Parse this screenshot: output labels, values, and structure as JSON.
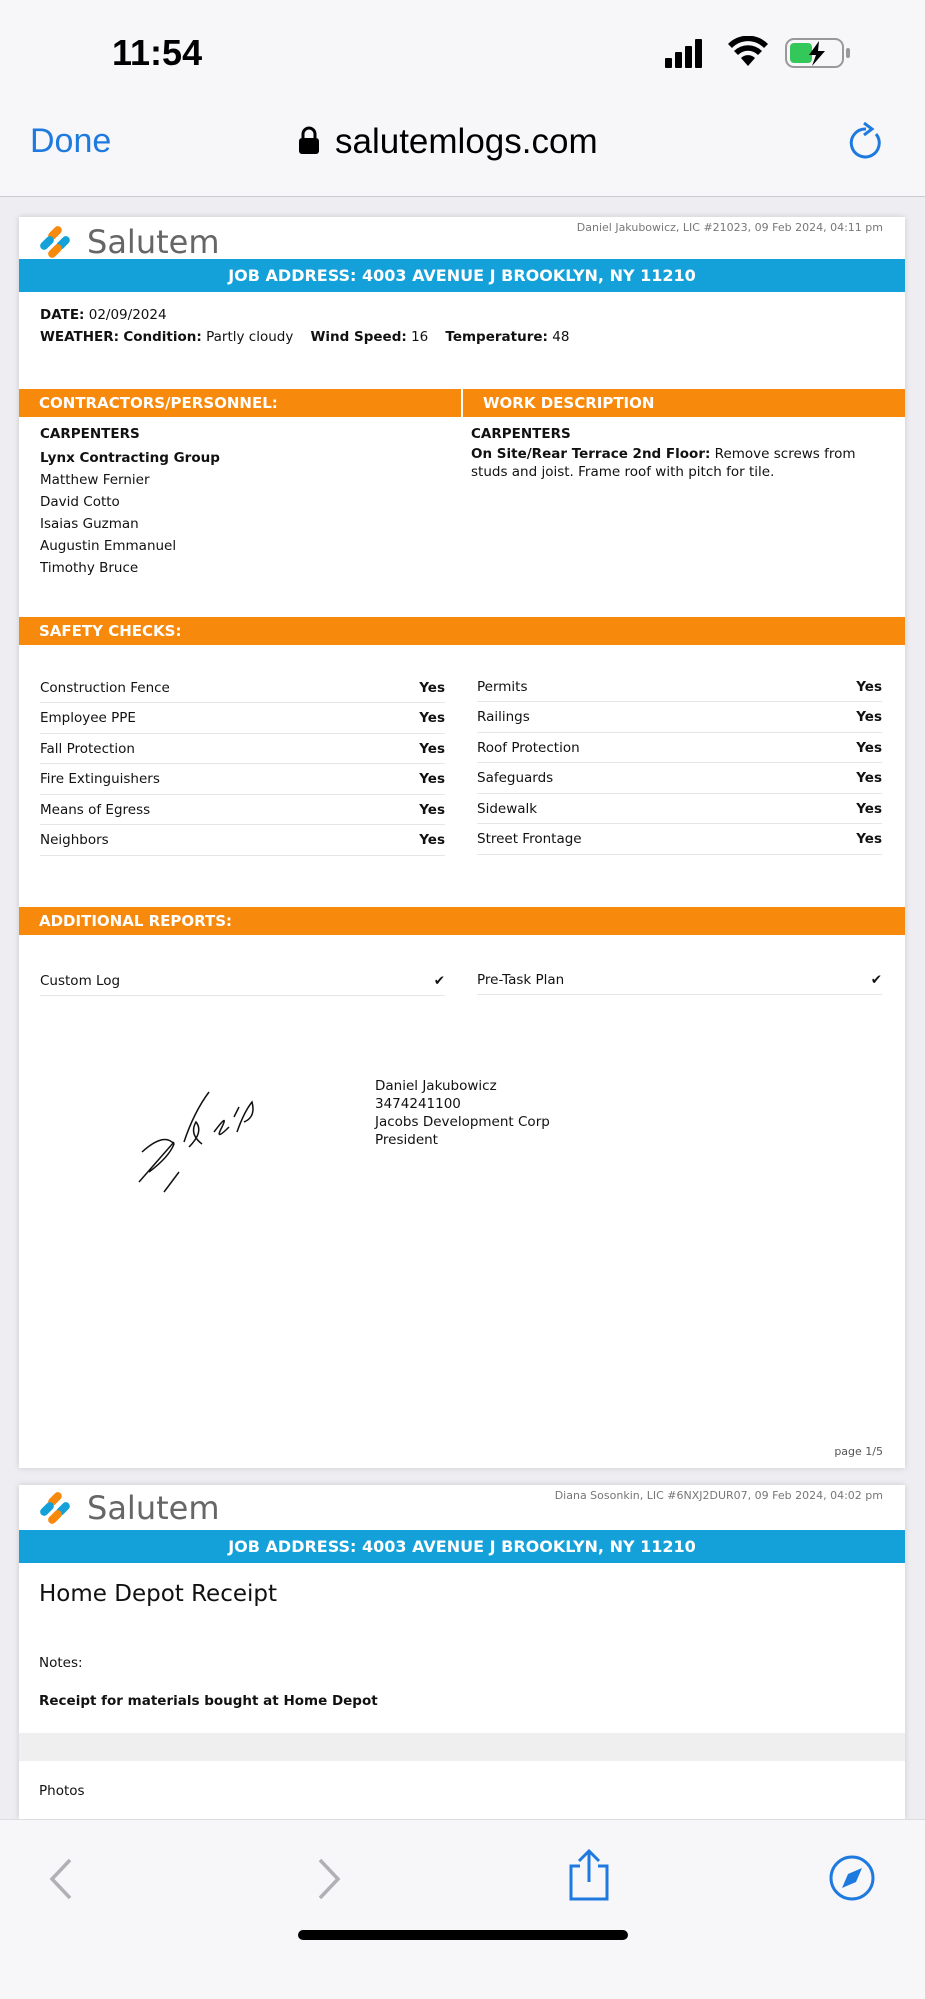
{
  "status": {
    "time": "11:54"
  },
  "browser": {
    "done": "Done",
    "url": "salutemlogs.com"
  },
  "page1": {
    "logo": "Salutem",
    "meta": "Daniel Jakubowicz, LIC #21023,  09 Feb 2024, 04:11 pm",
    "address": "JOB ADDRESS: 4003 AVENUE J BROOKLYN, NY 11210",
    "date_label": "DATE:",
    "date": "02/09/2024",
    "weather_label": "WEATHER:",
    "condition_label": "Condition:",
    "condition": "Partly cloudy",
    "wind_label": "Wind Speed:",
    "wind": "16",
    "temp_label": "Temperature:",
    "temp": "48",
    "contractors_header": "CONTRACTORS/PERSONNEL:",
    "work_header": "WORK DESCRIPTION",
    "trade": "CARPENTERS",
    "company": "Lynx Contracting Group",
    "personnel": [
      "Matthew Fernier",
      "David Cotto",
      "Isaias Guzman",
      "Augustin Emmanuel",
      "Timothy Bruce"
    ],
    "work_trade": "CARPENTERS",
    "work_location": "On Site/Rear Terrace 2nd Floor:",
    "work_text": "Remove screws from studs and joist. Frame roof with pitch for tile.",
    "safety_header": "SAFETY CHECKS:",
    "safety_left": [
      {
        "label": "Construction Fence",
        "value": "Yes"
      },
      {
        "label": "Employee PPE",
        "value": "Yes"
      },
      {
        "label": "Fall Protection",
        "value": "Yes"
      },
      {
        "label": "Fire Extinguishers",
        "value": "Yes"
      },
      {
        "label": "Means of Egress",
        "value": "Yes"
      },
      {
        "label": "Neighbors",
        "value": "Yes"
      }
    ],
    "safety_right": [
      {
        "label": "Permits",
        "value": "Yes"
      },
      {
        "label": "Railings",
        "value": "Yes"
      },
      {
        "label": "Roof Protection",
        "value": "Yes"
      },
      {
        "label": "Safeguards",
        "value": "Yes"
      },
      {
        "label": "Sidewalk",
        "value": "Yes"
      },
      {
        "label": "Street Frontage",
        "value": "Yes"
      }
    ],
    "additional_header": "ADDITIONAL REPORTS:",
    "additional": [
      {
        "label": "Custom Log",
        "value": "✔"
      },
      {
        "label": "Pre-Task Plan",
        "value": "✔"
      }
    ],
    "signer": [
      "Daniel Jakubowicz",
      "3474241100",
      "Jacobs Development Corp",
      "President"
    ],
    "page": "page 1/5"
  },
  "page2": {
    "logo": "Salutem",
    "meta": "Diana Sosonkin, LIC #6NXJ2DUR07,  09 Feb 2024, 04:02 pm",
    "address": "JOB ADDRESS: 4003 AVENUE J BROOKLYN, NY 11210",
    "title": "Home Depot Receipt",
    "notes_label": "Notes:",
    "notes": "Receipt for materials bought at Home Depot",
    "photos_label": "Photos"
  },
  "colors": {
    "blue": "#14a0d8",
    "orange": "#f7890c",
    "ios_blue": "#1f7ae0"
  }
}
